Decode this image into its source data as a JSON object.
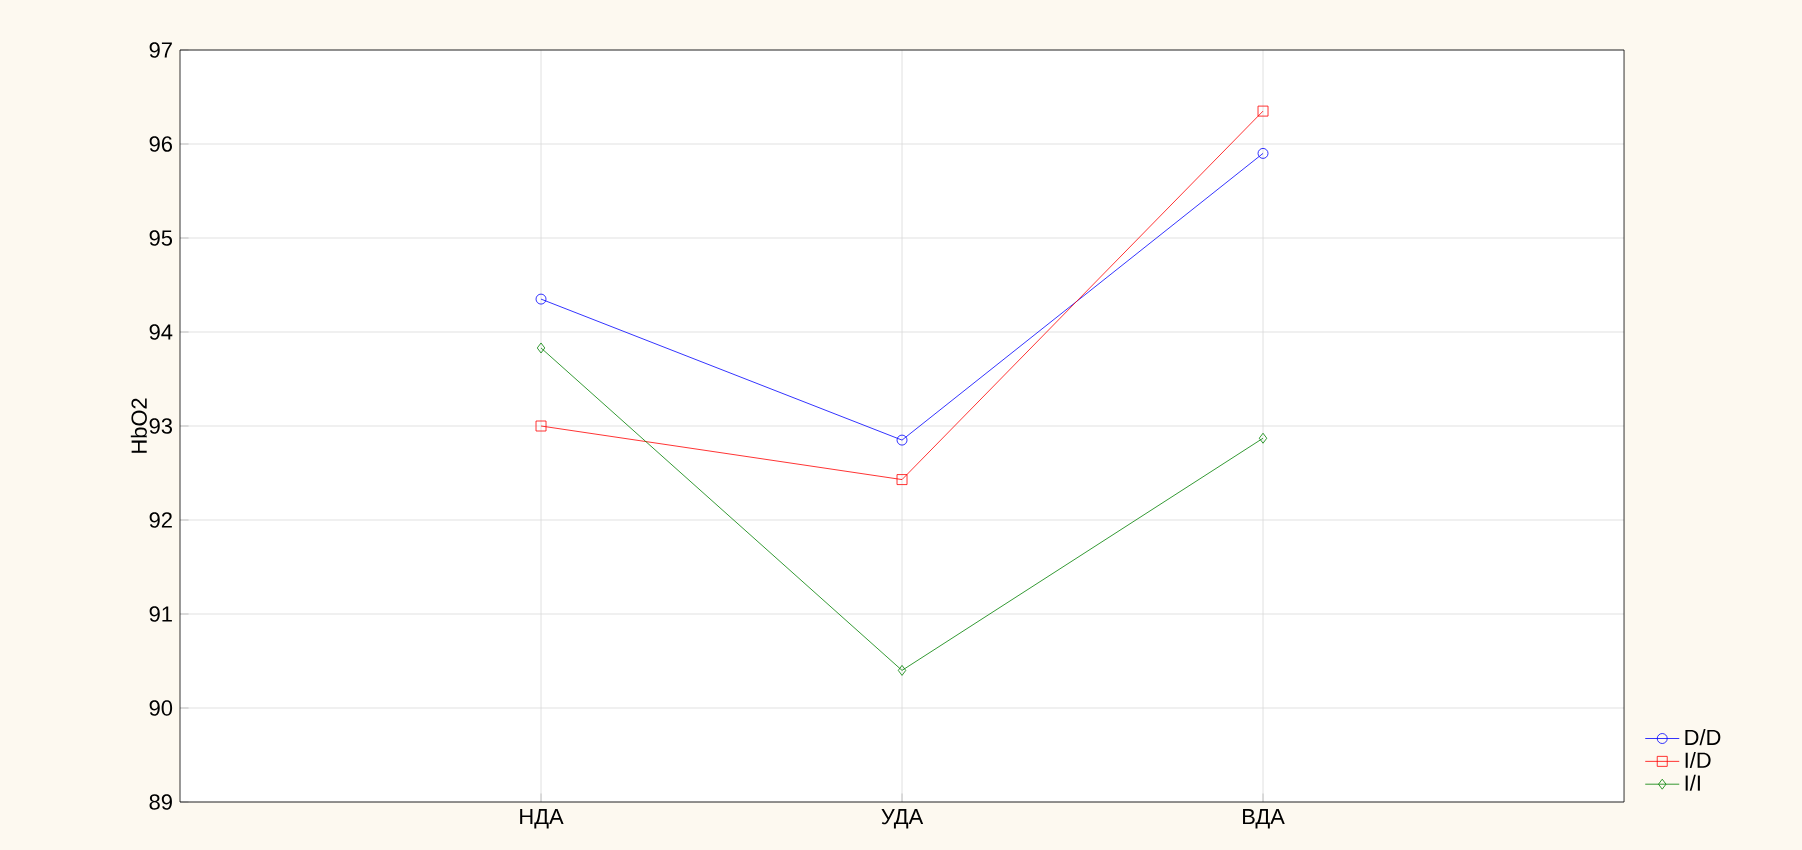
{
  "chart_data": {
    "type": "line",
    "ylabel": "HbO2",
    "categories": [
      "НДА",
      "УДА",
      "ВДА"
    ],
    "series": [
      {
        "name": "D/D",
        "color": "#0000ff",
        "marker": "circle",
        "values": [
          94.35,
          92.85,
          95.9
        ]
      },
      {
        "name": "I/D",
        "color": "#ff0000",
        "marker": "square",
        "values": [
          93.0,
          92.43,
          96.35
        ]
      },
      {
        "name": "I/I",
        "color": "#008000",
        "marker": "diamond",
        "values": [
          93.83,
          90.4,
          92.87
        ]
      }
    ],
    "ylim": [
      89,
      97
    ],
    "yticks": [
      89,
      90,
      91,
      92,
      93,
      94,
      95,
      96,
      97
    ],
    "grid": true,
    "legend": "bottom right",
    "line_style": "solid"
  }
}
